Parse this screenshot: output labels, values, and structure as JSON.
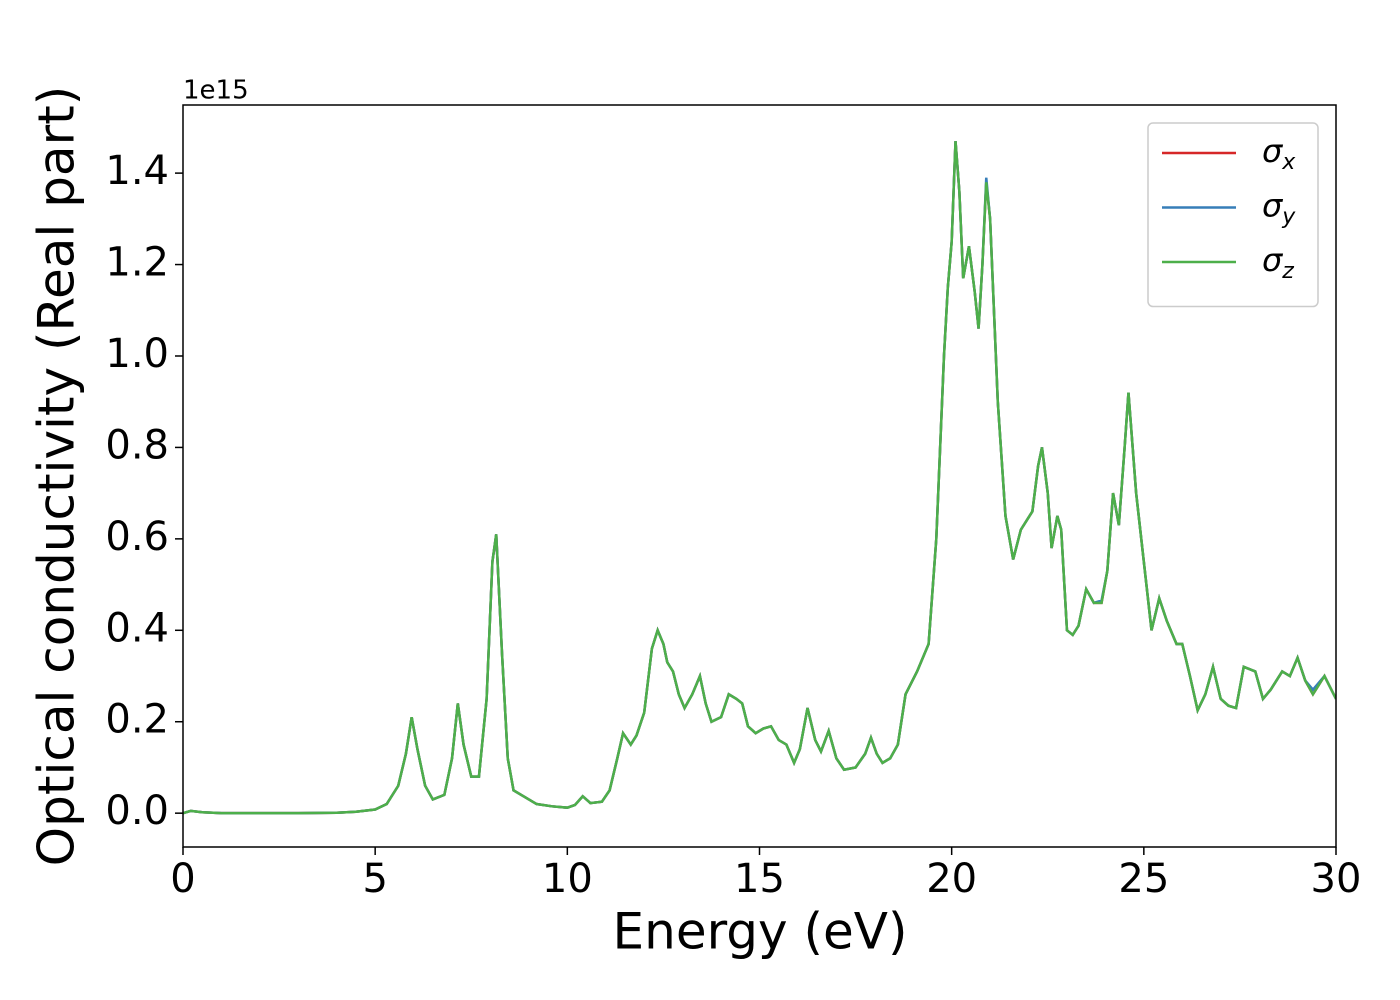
{
  "chart_data": {
    "type": "line",
    "xlabel": "Energy (eV)",
    "ylabel": "Optical conductivity (Real part)",
    "y_offset_text": "1e15",
    "xlim": [
      0,
      30
    ],
    "xticks": [
      0,
      5,
      10,
      15,
      20,
      25,
      30
    ],
    "ylim": [
      -0.074,
      1.549
    ],
    "yticks": [
      {
        "value": 0,
        "label": "0.0"
      },
      {
        "value": 0.2,
        "label": "0.2"
      },
      {
        "value": 0.4,
        "label": "0.4"
      },
      {
        "value": 0.6,
        "label": "0.6"
      },
      {
        "value": 0.8,
        "label": "0.8"
      },
      {
        "value": 1.0,
        "label": "1.0"
      },
      {
        "value": 1.2,
        "label": "1.2"
      },
      {
        "value": 1.4,
        "label": "1.4"
      }
    ],
    "legend": "upper right",
    "x": [
      0,
      0.2,
      0.5,
      1,
      2,
      3,
      4,
      4.5,
      5,
      5.3,
      5.6,
      5.8,
      5.95,
      6.1,
      6.3,
      6.5,
      6.8,
      7.0,
      7.15,
      7.3,
      7.5,
      7.7,
      7.9,
      8.05,
      8.15,
      8.3,
      8.45,
      8.6,
      8.9,
      9.2,
      9.6,
      10.0,
      10.2,
      10.4,
      10.6,
      10.9,
      11.1,
      11.3,
      11.45,
      11.65,
      11.8,
      12.0,
      12.2,
      12.35,
      12.5,
      12.6,
      12.75,
      12.9,
      13.05,
      13.25,
      13.45,
      13.6,
      13.75,
      14.0,
      14.2,
      14.4,
      14.55,
      14.7,
      14.9,
      15.1,
      15.3,
      15.5,
      15.7,
      15.9,
      16.05,
      16.25,
      16.45,
      16.6,
      16.8,
      17.0,
      17.2,
      17.5,
      17.75,
      17.9,
      18.05,
      18.2,
      18.4,
      18.6,
      18.8,
      19.1,
      19.4,
      19.6,
      19.8,
      19.9,
      20.0,
      20.1,
      20.2,
      20.3,
      20.45,
      20.6,
      20.7,
      20.8,
      20.9,
      21.0,
      21.2,
      21.4,
      21.6,
      21.8,
      21.95,
      22.1,
      22.25,
      22.35,
      22.5,
      22.6,
      22.75,
      22.85,
      23.0,
      23.15,
      23.3,
      23.5,
      23.7,
      23.9,
      24.05,
      24.2,
      24.35,
      24.5,
      24.6,
      24.8,
      25.0,
      25.2,
      25.4,
      25.6,
      25.85,
      26.0,
      26.2,
      26.4,
      26.6,
      26.8,
      27.0,
      27.2,
      27.4,
      27.6,
      27.9,
      28.1,
      28.3,
      28.6,
      28.8,
      29.0,
      29.2,
      29.4,
      29.7,
      30.0
    ],
    "series": [
      {
        "name": "σx",
        "color": "#d62728",
        "values": [
          0.0,
          0.005,
          0.002,
          0.0,
          0.0,
          0.0,
          0.001,
          0.003,
          0.008,
          0.02,
          0.06,
          0.13,
          0.21,
          0.14,
          0.06,
          0.03,
          0.04,
          0.12,
          0.24,
          0.15,
          0.08,
          0.08,
          0.25,
          0.55,
          0.61,
          0.35,
          0.12,
          0.05,
          0.035,
          0.02,
          0.015,
          0.012,
          0.018,
          0.037,
          0.022,
          0.025,
          0.05,
          0.12,
          0.175,
          0.15,
          0.17,
          0.22,
          0.36,
          0.4,
          0.37,
          0.33,
          0.31,
          0.26,
          0.23,
          0.26,
          0.3,
          0.24,
          0.2,
          0.21,
          0.26,
          0.25,
          0.24,
          0.19,
          0.175,
          0.185,
          0.19,
          0.16,
          0.15,
          0.11,
          0.14,
          0.23,
          0.16,
          0.135,
          0.18,
          0.12,
          0.095,
          0.1,
          0.13,
          0.165,
          0.13,
          0.11,
          0.12,
          0.15,
          0.26,
          0.31,
          0.37,
          0.6,
          1.0,
          1.15,
          1.25,
          1.47,
          1.36,
          1.17,
          1.24,
          1.14,
          1.06,
          1.2,
          1.38,
          1.3,
          0.9,
          0.65,
          0.555,
          0.62,
          0.64,
          0.66,
          0.76,
          0.8,
          0.7,
          0.58,
          0.65,
          0.62,
          0.4,
          0.39,
          0.41,
          0.49,
          0.46,
          0.46,
          0.53,
          0.7,
          0.63,
          0.8,
          0.92,
          0.7,
          0.55,
          0.4,
          0.47,
          0.42,
          0.37,
          0.37,
          0.3,
          0.225,
          0.26,
          0.32,
          0.25,
          0.235,
          0.23,
          0.32,
          0.31,
          0.25,
          0.27,
          0.31,
          0.3,
          0.34,
          0.29,
          0.26,
          0.3,
          0.25
        ]
      },
      {
        "name": "σy",
        "color": "#377eb8",
        "values": [
          0.0,
          0.005,
          0.002,
          0.0,
          0.0,
          0.0,
          0.001,
          0.003,
          0.008,
          0.02,
          0.06,
          0.13,
          0.21,
          0.14,
          0.06,
          0.03,
          0.04,
          0.12,
          0.24,
          0.15,
          0.08,
          0.08,
          0.25,
          0.55,
          0.61,
          0.35,
          0.12,
          0.05,
          0.035,
          0.02,
          0.015,
          0.012,
          0.018,
          0.037,
          0.022,
          0.025,
          0.05,
          0.12,
          0.175,
          0.15,
          0.17,
          0.22,
          0.36,
          0.4,
          0.37,
          0.33,
          0.31,
          0.26,
          0.23,
          0.26,
          0.3,
          0.24,
          0.2,
          0.21,
          0.26,
          0.25,
          0.24,
          0.19,
          0.175,
          0.185,
          0.19,
          0.16,
          0.15,
          0.11,
          0.14,
          0.23,
          0.16,
          0.135,
          0.18,
          0.12,
          0.095,
          0.1,
          0.13,
          0.165,
          0.13,
          0.11,
          0.12,
          0.15,
          0.26,
          0.31,
          0.37,
          0.6,
          1.0,
          1.15,
          1.25,
          1.47,
          1.36,
          1.17,
          1.24,
          1.14,
          1.06,
          1.2,
          1.39,
          1.3,
          0.9,
          0.65,
          0.555,
          0.62,
          0.64,
          0.66,
          0.76,
          0.8,
          0.7,
          0.58,
          0.65,
          0.62,
          0.4,
          0.39,
          0.41,
          0.49,
          0.46,
          0.465,
          0.53,
          0.7,
          0.63,
          0.8,
          0.92,
          0.7,
          0.55,
          0.4,
          0.47,
          0.42,
          0.37,
          0.37,
          0.3,
          0.225,
          0.26,
          0.32,
          0.25,
          0.235,
          0.23,
          0.32,
          0.31,
          0.25,
          0.27,
          0.31,
          0.3,
          0.34,
          0.29,
          0.27,
          0.3,
          0.25
        ]
      },
      {
        "name": "σz",
        "color": "#4daf4a",
        "values": [
          0.0,
          0.005,
          0.002,
          0.0,
          0.0,
          0.0,
          0.001,
          0.003,
          0.008,
          0.02,
          0.06,
          0.13,
          0.21,
          0.14,
          0.06,
          0.03,
          0.04,
          0.12,
          0.24,
          0.15,
          0.08,
          0.08,
          0.25,
          0.55,
          0.61,
          0.35,
          0.12,
          0.05,
          0.035,
          0.02,
          0.015,
          0.012,
          0.018,
          0.037,
          0.022,
          0.025,
          0.05,
          0.12,
          0.175,
          0.15,
          0.17,
          0.22,
          0.36,
          0.4,
          0.37,
          0.33,
          0.31,
          0.26,
          0.23,
          0.26,
          0.3,
          0.24,
          0.2,
          0.21,
          0.26,
          0.25,
          0.24,
          0.19,
          0.175,
          0.185,
          0.19,
          0.16,
          0.15,
          0.11,
          0.14,
          0.23,
          0.16,
          0.135,
          0.18,
          0.12,
          0.095,
          0.1,
          0.13,
          0.165,
          0.13,
          0.11,
          0.12,
          0.15,
          0.26,
          0.31,
          0.37,
          0.6,
          1.0,
          1.15,
          1.25,
          1.47,
          1.36,
          1.17,
          1.24,
          1.14,
          1.06,
          1.2,
          1.38,
          1.3,
          0.9,
          0.65,
          0.555,
          0.62,
          0.64,
          0.66,
          0.76,
          0.8,
          0.7,
          0.58,
          0.65,
          0.62,
          0.4,
          0.39,
          0.41,
          0.49,
          0.46,
          0.46,
          0.53,
          0.7,
          0.63,
          0.8,
          0.92,
          0.7,
          0.55,
          0.4,
          0.47,
          0.42,
          0.37,
          0.37,
          0.3,
          0.225,
          0.26,
          0.32,
          0.25,
          0.235,
          0.23,
          0.32,
          0.31,
          0.25,
          0.27,
          0.31,
          0.3,
          0.34,
          0.29,
          0.26,
          0.3,
          0.25
        ]
      }
    ]
  }
}
